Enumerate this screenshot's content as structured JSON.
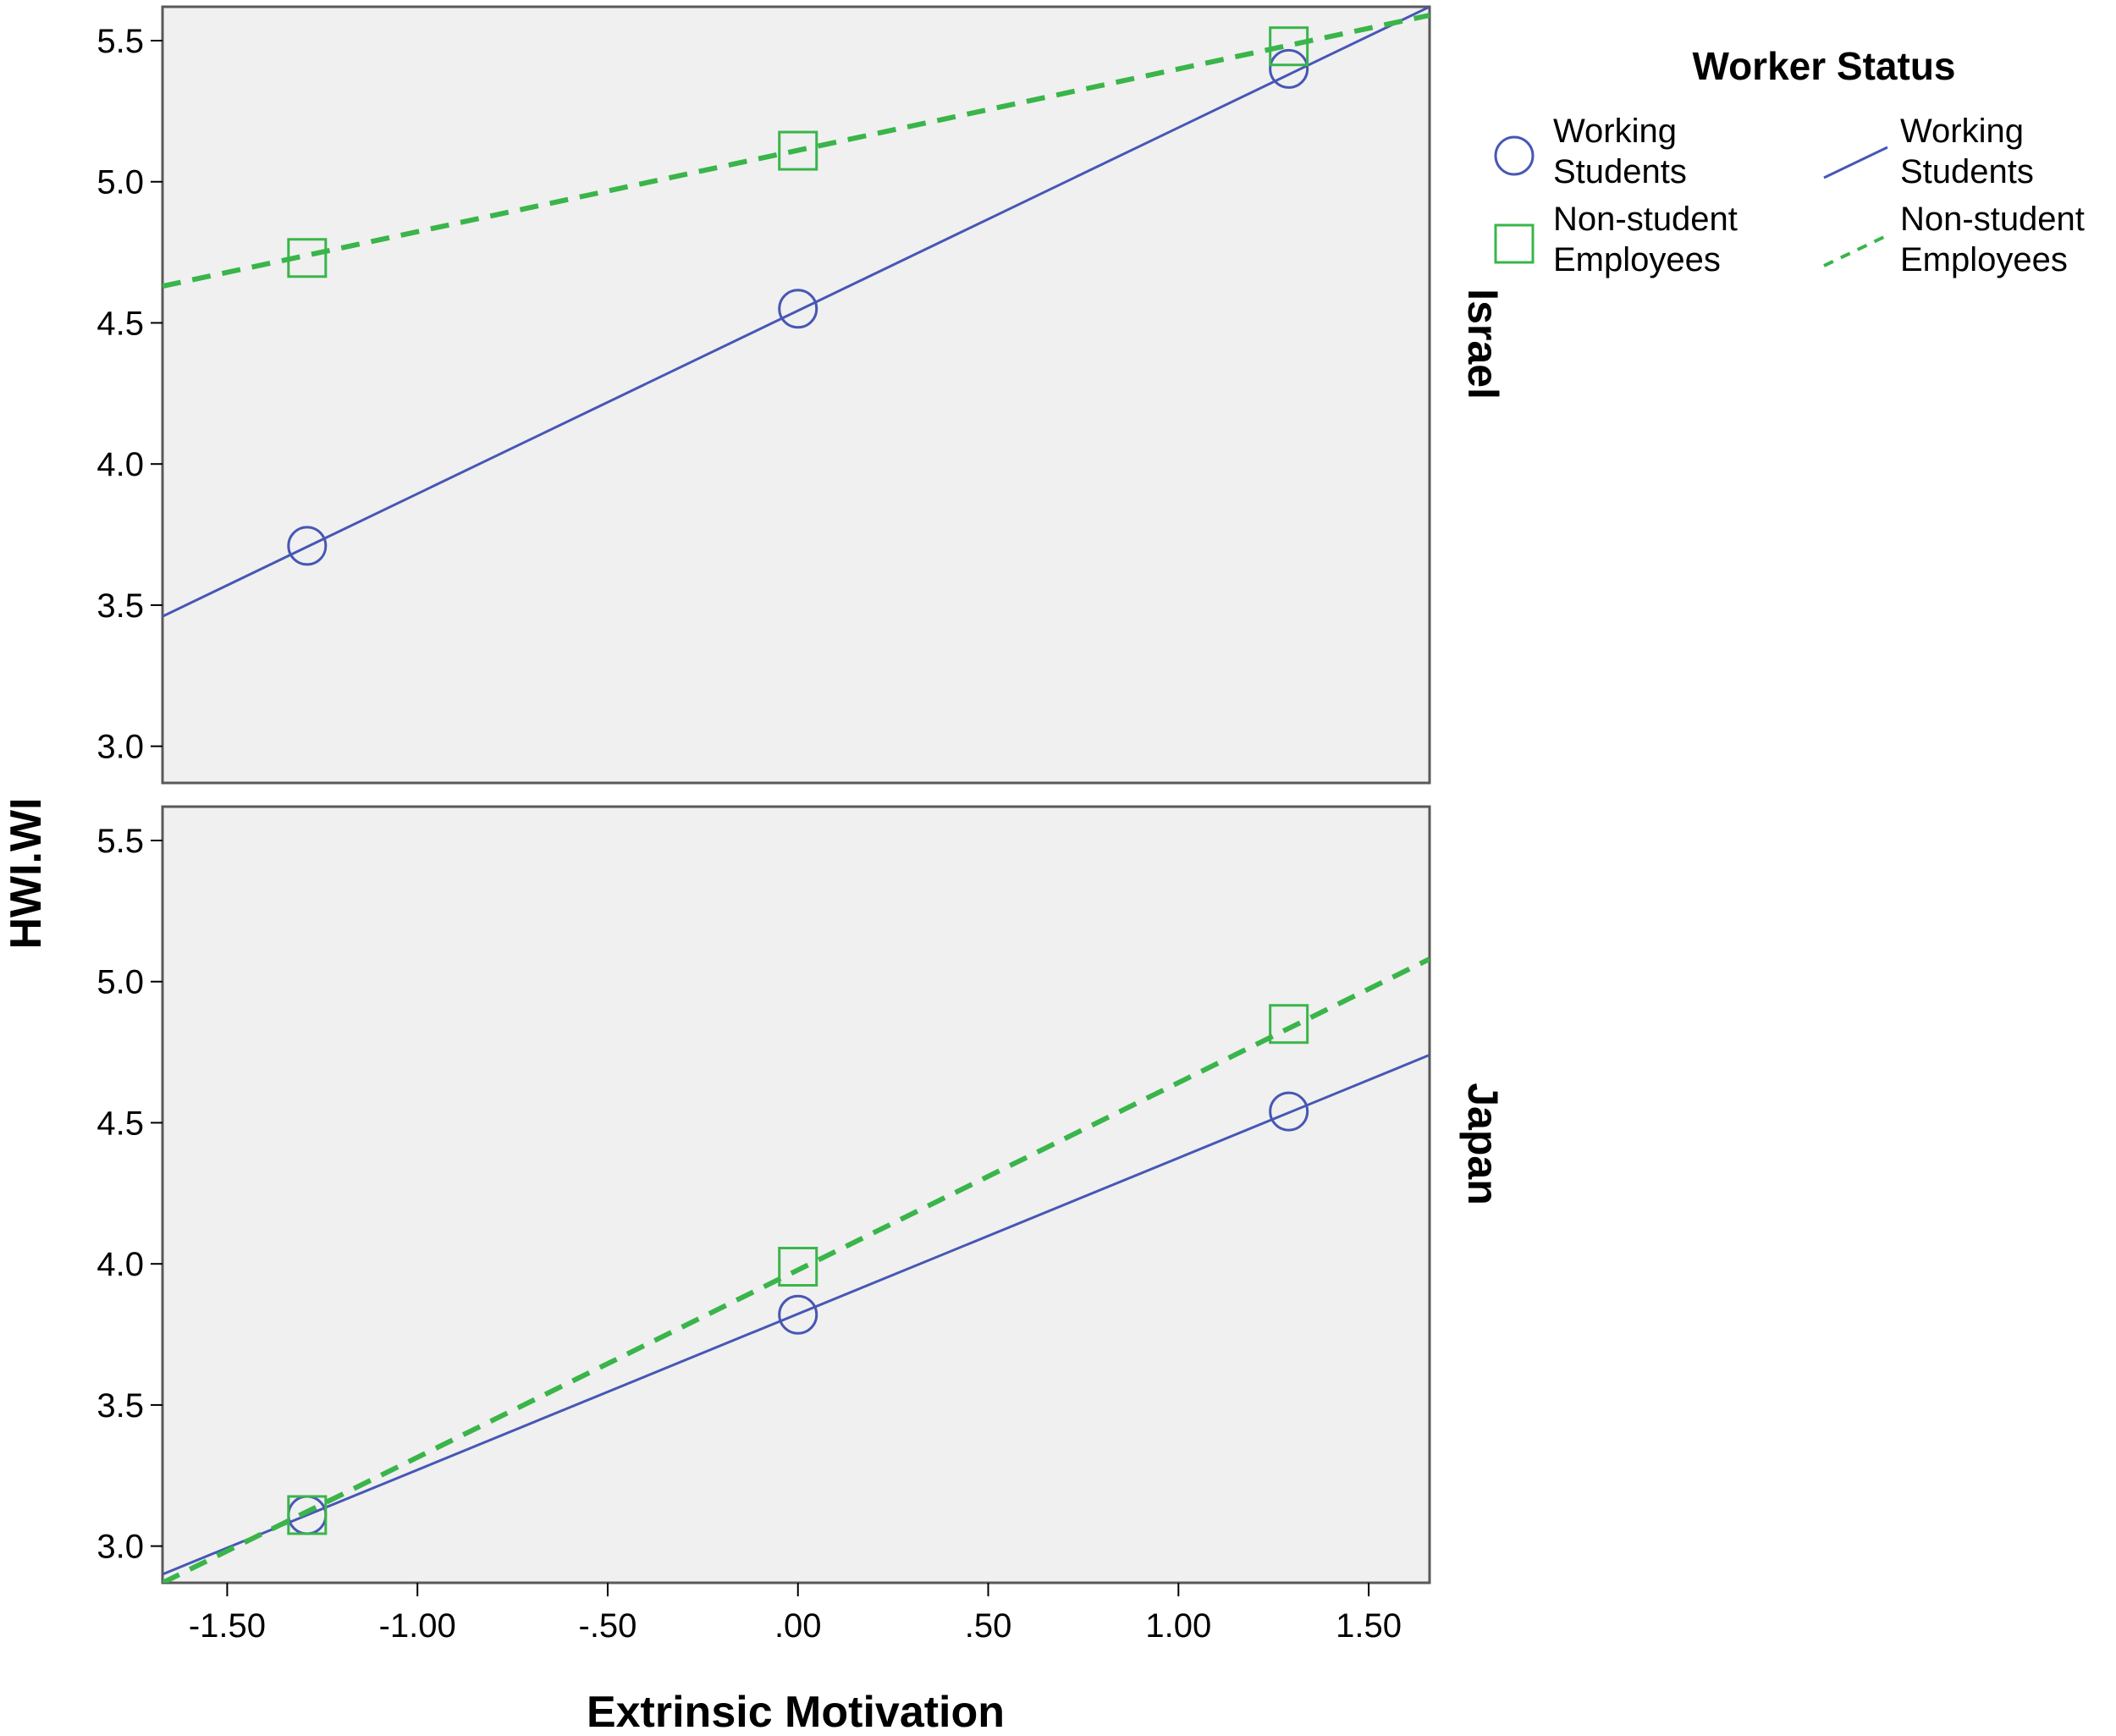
{
  "chart_data": {
    "type": "line",
    "xlabel": "Extrinsic Motivation",
    "ylabel": "HWI.WI",
    "xlim": [
      -1.67,
      1.66
    ],
    "ylim": [
      2.87,
      5.62
    ],
    "xticks": [
      -1.5,
      -1.0,
      -0.5,
      0.0,
      0.5,
      1.0,
      1.5
    ],
    "xtick_labels": [
      "-1.50",
      "-1.00",
      "-.50",
      ".00",
      ".50",
      "1.00",
      "1.50"
    ],
    "yticks": [
      3.0,
      3.5,
      4.0,
      4.5,
      5.0,
      5.5
    ],
    "ytick_labels": [
      "3.0",
      "3.5",
      "4.0",
      "4.5",
      "5.0",
      "5.5"
    ],
    "grid": false,
    "legend": {
      "title": "Worker Status",
      "placement": "top-right",
      "marker_entries": [
        {
          "lines": [
            "Working",
            "Students"
          ],
          "series": "Working Students"
        },
        {
          "lines": [
            "Non-student",
            "Employees"
          ],
          "series": "Non-student Employees"
        }
      ],
      "line_entries": [
        {
          "lines": [
            "Working",
            "Students"
          ],
          "series": "Working Students"
        },
        {
          "lines": [
            "Non-student",
            "Employees"
          ],
          "series": "Non-student Employees"
        }
      ]
    },
    "panels": [
      {
        "facet": "Israel",
        "series": [
          {
            "name": "Working Students",
            "color": "#4757b5",
            "marker": "circle",
            "line": "solid",
            "x": [
              -1.29,
              0.0,
              1.29
            ],
            "y": [
              3.71,
              4.55,
              5.4
            ],
            "fit": {
              "x": [
                -1.67,
                1.66
              ],
              "y": [
                3.46,
                5.62
              ]
            }
          },
          {
            "name": "Non-student Employees",
            "color": "#39b54a",
            "marker": "square",
            "line": "dashed",
            "x": [
              -1.29,
              0.0,
              1.29
            ],
            "y": [
              4.73,
              5.11,
              5.48
            ],
            "fit": {
              "x": [
                -1.67,
                1.66
              ],
              "y": [
                4.63,
                5.59
              ]
            }
          }
        ]
      },
      {
        "facet": "Japan",
        "series": [
          {
            "name": "Working Students",
            "color": "#4757b5",
            "marker": "circle",
            "line": "solid",
            "x": [
              -1.29,
              0.0,
              1.29
            ],
            "y": [
              3.11,
              3.82,
              4.54
            ],
            "fit": {
              "x": [
                -1.67,
                1.66
              ],
              "y": [
                2.9,
                4.74
              ]
            }
          },
          {
            "name": "Non-student Employees",
            "color": "#39b54a",
            "marker": "square",
            "line": "dashed",
            "x": [
              -1.29,
              0.0,
              1.29
            ],
            "y": [
              3.11,
              3.99,
              4.85
            ],
            "fit": {
              "x": [
                -1.67,
                1.66
              ],
              "y": [
                2.87,
                5.08
              ]
            }
          }
        ]
      }
    ]
  }
}
